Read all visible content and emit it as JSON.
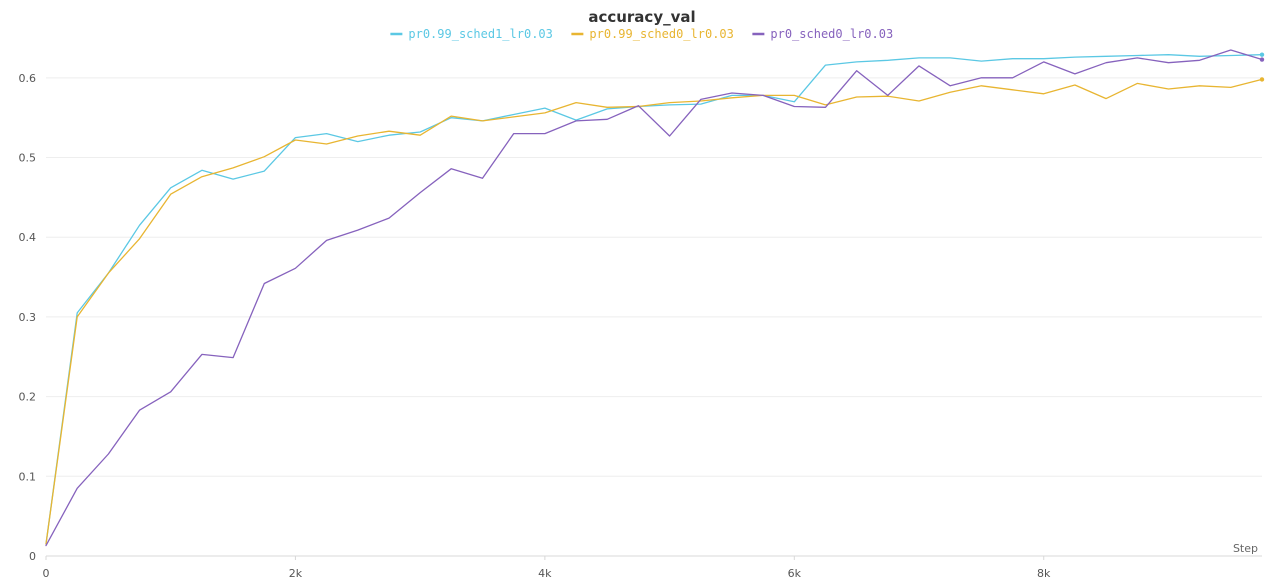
{
  "chart_data": {
    "type": "line",
    "title": "accuracy_val",
    "xlabel": "Step",
    "ylabel": "",
    "xlim": [
      0,
      9750
    ],
    "ylim": [
      0,
      0.65
    ],
    "grid": true,
    "legend_position": "top-center",
    "x_ticks": [
      {
        "value": 0,
        "label": "0"
      },
      {
        "value": 2000,
        "label": "2k"
      },
      {
        "value": 4000,
        "label": "4k"
      },
      {
        "value": 6000,
        "label": "6k"
      },
      {
        "value": 8000,
        "label": "8k"
      }
    ],
    "y_ticks": [
      {
        "value": 0,
        "label": "0"
      },
      {
        "value": 0.1,
        "label": "0.1"
      },
      {
        "value": 0.2,
        "label": "0.2"
      },
      {
        "value": 0.3,
        "label": "0.3"
      },
      {
        "value": 0.4,
        "label": "0.4"
      },
      {
        "value": 0.5,
        "label": "0.5"
      },
      {
        "value": 0.6,
        "label": "0.6"
      }
    ],
    "x": [
      0,
      250,
      500,
      750,
      1000,
      1250,
      1500,
      1750,
      2000,
      2250,
      2500,
      2750,
      3000,
      3250,
      3500,
      3750,
      4000,
      4250,
      4500,
      4750,
      5000,
      5250,
      5500,
      5750,
      6000,
      6250,
      6500,
      6750,
      7000,
      7250,
      7500,
      7750,
      8000,
      8250,
      8500,
      8750,
      9000,
      9250,
      9500,
      9750
    ],
    "series": [
      {
        "name": "pr0.99_sched1_lr0.03",
        "color": "#5bc8e4",
        "values": [
          0.015,
          0.305,
          0.355,
          0.415,
          0.462,
          0.484,
          0.473,
          0.483,
          0.525,
          0.53,
          0.52,
          0.528,
          0.532,
          0.55,
          0.546,
          0.554,
          0.562,
          0.547,
          0.561,
          0.564,
          0.566,
          0.567,
          0.578,
          0.578,
          0.57,
          0.616,
          0.62,
          0.622,
          0.625,
          0.625,
          0.621,
          0.624,
          0.624,
          0.626,
          0.627,
          0.628,
          0.629,
          0.627,
          0.628,
          0.629
        ]
      },
      {
        "name": "pr0.99_sched0_lr0.03",
        "color": "#e8b531",
        "values": [
          0.015,
          0.3,
          0.355,
          0.398,
          0.454,
          0.476,
          0.487,
          0.501,
          0.522,
          0.517,
          0.527,
          0.533,
          0.528,
          0.552,
          0.546,
          0.551,
          0.556,
          0.569,
          0.563,
          0.564,
          0.569,
          0.571,
          0.575,
          0.578,
          0.578,
          0.566,
          0.576,
          0.577,
          0.571,
          0.582,
          0.59,
          0.585,
          0.58,
          0.591,
          0.574,
          0.593,
          0.586,
          0.59,
          0.588,
          0.598
        ]
      },
      {
        "name": "pr0_sched0_lr0.03",
        "color": "#8662bd",
        "values": [
          0.013,
          0.085,
          0.128,
          0.183,
          0.206,
          0.253,
          0.249,
          0.342,
          0.361,
          0.396,
          0.409,
          0.424,
          0.456,
          0.486,
          0.474,
          0.53,
          0.53,
          0.546,
          0.548,
          0.565,
          0.527,
          0.573,
          0.581,
          0.578,
          0.564,
          0.563,
          0.609,
          0.578,
          0.615,
          0.59,
          0.6,
          0.6,
          0.62,
          0.605,
          0.619,
          0.625,
          0.619,
          0.622,
          0.635,
          0.623
        ]
      }
    ]
  }
}
